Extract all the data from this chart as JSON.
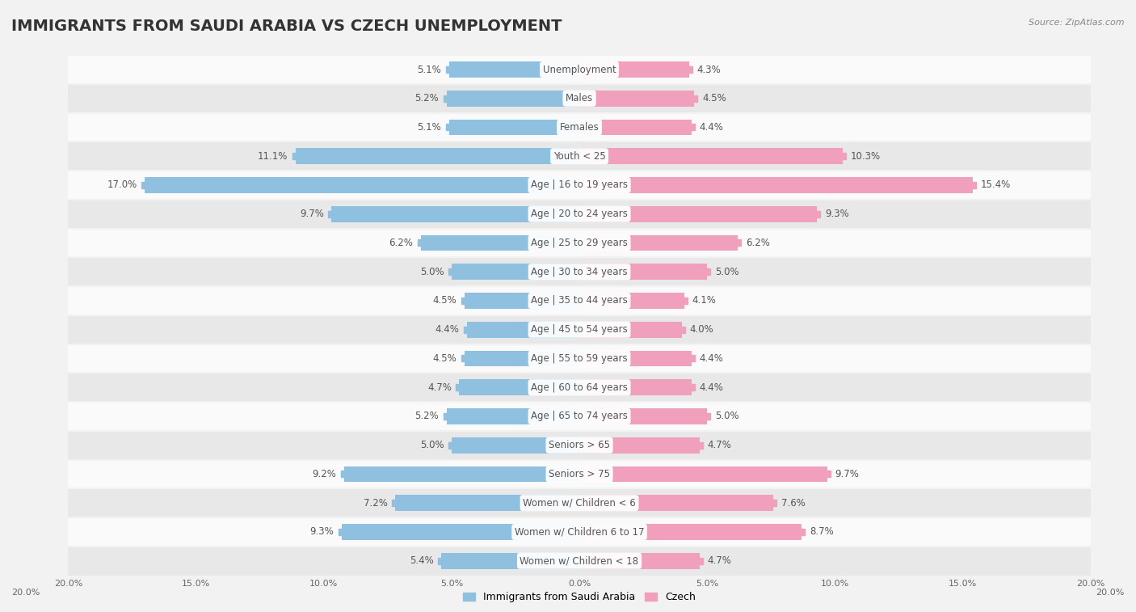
{
  "title": "IMMIGRANTS FROM SAUDI ARABIA VS CZECH UNEMPLOYMENT",
  "source": "Source: ZipAtlas.com",
  "categories": [
    "Unemployment",
    "Males",
    "Females",
    "Youth < 25",
    "Age | 16 to 19 years",
    "Age | 20 to 24 years",
    "Age | 25 to 29 years",
    "Age | 30 to 34 years",
    "Age | 35 to 44 years",
    "Age | 45 to 54 years",
    "Age | 55 to 59 years",
    "Age | 60 to 64 years",
    "Age | 65 to 74 years",
    "Seniors > 65",
    "Seniors > 75",
    "Women w/ Children < 6",
    "Women w/ Children 6 to 17",
    "Women w/ Children < 18"
  ],
  "left_values": [
    5.1,
    5.2,
    5.1,
    11.1,
    17.0,
    9.7,
    6.2,
    5.0,
    4.5,
    4.4,
    4.5,
    4.7,
    5.2,
    5.0,
    9.2,
    7.2,
    9.3,
    5.4
  ],
  "right_values": [
    4.3,
    4.5,
    4.4,
    10.3,
    15.4,
    9.3,
    6.2,
    5.0,
    4.1,
    4.0,
    4.4,
    4.4,
    5.0,
    4.7,
    9.7,
    7.6,
    8.7,
    4.7
  ],
  "left_color": "#90c0e0",
  "right_color": "#f0a0bc",
  "max_val": 20.0,
  "bg_color": "#f2f2f2",
  "row_bg_light": "#fafafa",
  "row_bg_dark": "#e8e8e8",
  "legend_left": "Immigrants from Saudi Arabia",
  "legend_right": "Czech",
  "title_fontsize": 14,
  "label_fontsize": 8.5,
  "value_fontsize": 8.5,
  "axis_label_fontsize": 8
}
